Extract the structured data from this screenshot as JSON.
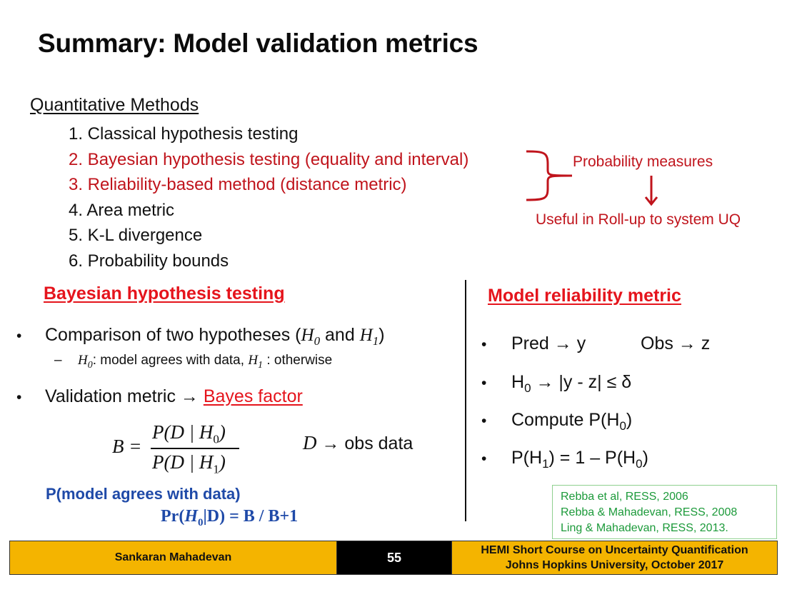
{
  "title": "Summary: Model validation metrics",
  "quantitative": {
    "heading": "Quantitative Methods",
    "items": [
      "1. Classical hypothesis testing",
      "2. Bayesian hypothesis testing (equality and interval)",
      "3. Reliability-based method (distance metric)",
      "4. Area metric",
      "5. K-L divergence",
      "6. Probability bounds"
    ],
    "probability_measures": "Probability measures",
    "useful": "Useful in Roll-up to system UQ"
  },
  "bayesian": {
    "heading": "Bayesian hypothesis testing",
    "b1_text": "Comparison of two hypotheses (",
    "b1_h0": "H",
    "b1_h0_sub": "0",
    "b1_and": " and ",
    "b1_h1": "H",
    "b1_h1_sub": "1",
    "b1_close": ")",
    "sub_dash": "–",
    "sub_h0": "H",
    "sub_h0_sub": "0",
    "sub_text1": ": model agrees with data, ",
    "sub_h1": "H",
    "sub_h1_sub": "1",
    "sub_text2": " : otherwise",
    "b2_text": "Validation metric → ",
    "b2_link": "Bayes factor",
    "formula_lhs": "B =",
    "formula_num": "P(D | H",
    "formula_num_sub": "0",
    "formula_num_close": ")",
    "formula_den": "P(D | H",
    "formula_den_sub": "1",
    "formula_den_close": ")",
    "d_var": "D",
    "d_text": " → obs data",
    "agree_label": "P(model agrees with data)",
    "pr_prefix": "Pr(",
    "pr_h": "H",
    "pr_sub": "0",
    "pr_suffix": "|D) = B / B+1"
  },
  "reliability": {
    "heading": "Model reliability metric",
    "pred": "Pred → y",
    "obs": "Obs → z",
    "h0_prefix": "H",
    "h0_sub": "0",
    "h0_text": " → |y - z| ≤ δ",
    "compute_prefix": "Compute P(H",
    "compute_sub": "0",
    "compute_close": ")",
    "p_prefix": "P(H",
    "p_sub1": "1",
    "p_mid": ") = 1 – P(H",
    "p_sub0": "0",
    "p_close": ")"
  },
  "references": [
    "Rebba et al, RESS, 2006",
    "Rebba & Mahadevan, RESS, 2008",
    "Ling & Mahadevan, RESS, 2013."
  ],
  "bullet_glyph": "•",
  "footer": {
    "author": "Sankaran Mahadevan",
    "page": "55",
    "course_line1": "HEMI Short Course on Uncertainty Quantification",
    "course_line2": "Johns Hopkins University, October 2017"
  }
}
